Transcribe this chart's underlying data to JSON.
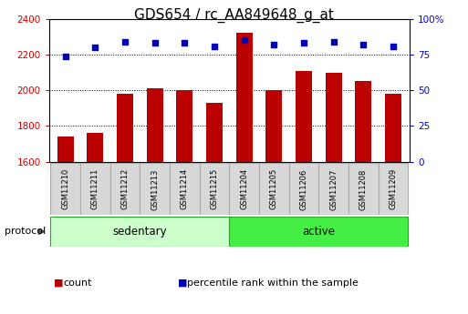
{
  "title": "GDS654 / rc_AA849648_g_at",
  "samples": [
    "GSM11210",
    "GSM11211",
    "GSM11212",
    "GSM11213",
    "GSM11214",
    "GSM11215",
    "GSM11204",
    "GSM11205",
    "GSM11206",
    "GSM11207",
    "GSM11208",
    "GSM11209"
  ],
  "counts": [
    1740,
    1760,
    1980,
    2010,
    2000,
    1930,
    2320,
    2000,
    2110,
    2100,
    2050,
    1980
  ],
  "percentile_ranks": [
    74,
    80,
    84,
    83,
    83,
    81,
    85,
    82,
    83,
    84,
    82,
    81
  ],
  "ylim_left": [
    1600,
    2400
  ],
  "ylim_right": [
    0,
    100
  ],
  "yticks_left": [
    1600,
    1800,
    2000,
    2200,
    2400
  ],
  "yticks_right": [
    0,
    25,
    50,
    75,
    100
  ],
  "groups": [
    {
      "label": "sedentary",
      "start": 0,
      "end": 6,
      "color": "#ccffcc"
    },
    {
      "label": "active",
      "start": 6,
      "end": 12,
      "color": "#44ee44"
    }
  ],
  "protocol_label": "protocol",
  "bar_color": "#bb0000",
  "dot_color": "#0000bb",
  "legend_items": [
    {
      "label": "count",
      "color": "#bb0000"
    },
    {
      "label": "percentile rank within the sample",
      "color": "#0000bb"
    }
  ],
  "title_fontsize": 11,
  "tick_label_color_left": "#cc0000",
  "tick_label_color_right": "#0000cc",
  "grid_yticks": [
    1800,
    2000,
    2200
  ],
  "label_box_color": "#d8d8d8",
  "label_box_edge": "#aaaaaa"
}
